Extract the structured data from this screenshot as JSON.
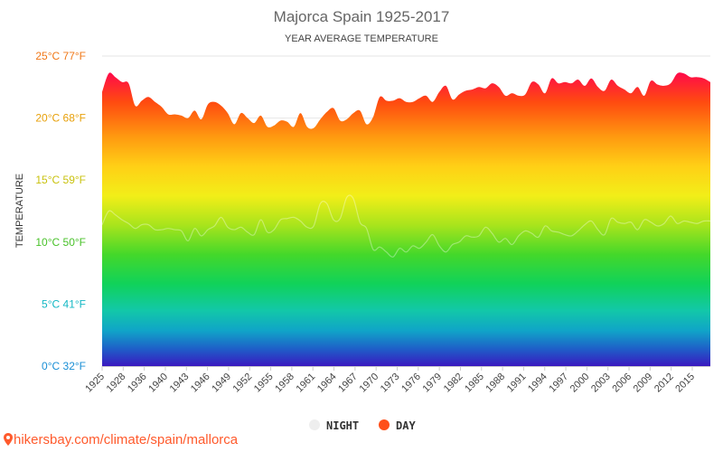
{
  "chart_data": {
    "type": "area",
    "title": "Majorca Spain 1925-2017",
    "subtitle": "YEAR AVERAGE TEMPERATURE",
    "ylabel": "TEMPERATURE",
    "ylim": [
      0,
      25
    ],
    "y_ticks": [
      {
        "value": 0,
        "label": "0°C 32°F",
        "color": "#1a8fd6"
      },
      {
        "value": 5,
        "label": "5°C 41°F",
        "color": "#14b8c4"
      },
      {
        "value": 10,
        "label": "10°C 50°F",
        "color": "#49c22a"
      },
      {
        "value": 15,
        "label": "15°C 59°F",
        "color": "#c9c20f"
      },
      {
        "value": 20,
        "label": "20°C 68°F",
        "color": "#e8a10c"
      },
      {
        "value": 25,
        "label": "25°C 77°F",
        "color": "#f07818"
      }
    ],
    "x_tick_labels": [
      "1925",
      "1928",
      "1936",
      "1940",
      "1943",
      "1946",
      "1949",
      "1952",
      "1955",
      "1958",
      "1961",
      "1964",
      "1967",
      "1970",
      "1973",
      "1976",
      "1979",
      "1982",
      "1985",
      "1988",
      "1991",
      "1994",
      "1997",
      "2000",
      "2003",
      "2006",
      "2009",
      "2012",
      "2015"
    ],
    "x": [
      1925,
      1926,
      1927,
      1928,
      1929,
      1930,
      1931,
      1932,
      1933,
      1934,
      1935,
      1936,
      1937,
      1938,
      1939,
      1940,
      1941,
      1942,
      1943,
      1944,
      1945,
      1946,
      1947,
      1948,
      1949,
      1950,
      1951,
      1952,
      1953,
      1954,
      1955,
      1956,
      1957,
      1958,
      1959,
      1960,
      1961,
      1962,
      1963,
      1964,
      1965,
      1966,
      1967,
      1968,
      1969,
      1970,
      1971,
      1972,
      1973,
      1974,
      1975,
      1976,
      1977,
      1978,
      1979,
      1980,
      1981,
      1982,
      1983,
      1984,
      1985,
      1986,
      1987,
      1988,
      1989,
      1990,
      1991,
      1992,
      1993,
      1994,
      1995,
      1996,
      1997,
      1998,
      1999,
      2000,
      2001,
      2002,
      2003,
      2004,
      2005,
      2006,
      2007,
      2008,
      2009,
      2010,
      2011,
      2012,
      2013,
      2014,
      2015,
      2016,
      2017
    ],
    "series": [
      {
        "name": "DAY",
        "color": "#ff4f1a",
        "values": [
          22.1,
          23.6,
          23.3,
          22.9,
          22.8,
          21.0,
          21.4,
          21.7,
          21.3,
          20.9,
          20.3,
          20.3,
          20.2,
          20.0,
          20.6,
          19.9,
          21.1,
          21.3,
          21.0,
          20.4,
          19.5,
          20.4,
          20.0,
          19.6,
          20.2,
          19.3,
          19.4,
          19.8,
          19.7,
          19.3,
          20.4,
          19.3,
          19.2,
          19.9,
          20.5,
          20.8,
          19.8,
          19.9,
          20.4,
          20.6,
          19.5,
          20.1,
          21.7,
          21.4,
          21.4,
          21.6,
          21.3,
          21.3,
          21.6,
          21.8,
          21.3,
          22.1,
          22.6,
          21.5,
          21.9,
          22.2,
          22.3,
          22.5,
          22.4,
          22.8,
          22.5,
          21.8,
          22.0,
          21.8,
          21.9,
          22.9,
          22.7,
          22.0,
          23.2,
          22.8,
          22.9,
          22.8,
          23.1,
          22.6,
          23.2,
          22.5,
          22.2,
          23.1,
          22.6,
          22.3,
          22.0,
          22.5,
          21.8,
          23.0,
          22.7,
          22.6,
          22.8,
          23.6,
          23.6,
          23.3,
          23.3,
          23.2,
          22.9
        ]
      },
      {
        "name": "NIGHT",
        "color": "#eeeeee",
        "values": [
          11.4,
          12.5,
          12.2,
          11.8,
          11.5,
          11.1,
          11.4,
          11.4,
          11.0,
          11.0,
          11.1,
          11.0,
          10.9,
          10.1,
          11.1,
          10.5,
          11.0,
          11.3,
          12.0,
          11.2,
          11.0,
          11.2,
          10.8,
          10.6,
          11.8,
          10.8,
          11.0,
          11.8,
          11.9,
          12.0,
          11.7,
          11.2,
          11.3,
          13.1,
          13.1,
          11.8,
          11.9,
          13.6,
          13.5,
          11.6,
          11.1,
          9.4,
          9.6,
          9.2,
          8.8,
          9.5,
          9.2,
          9.7,
          9.5,
          10.0,
          10.6,
          9.7,
          9.2,
          9.8,
          10.0,
          10.5,
          10.4,
          10.5,
          11.2,
          10.7,
          10.0,
          10.3,
          9.8,
          10.5,
          10.9,
          10.7,
          10.4,
          11.3,
          10.9,
          10.8,
          10.6,
          10.5,
          10.9,
          11.4,
          11.7,
          11.0,
          10.6,
          11.9,
          11.6,
          11.5,
          11.6,
          11.0,
          11.8,
          11.6,
          11.3,
          11.5,
          12.1,
          11.5,
          11.7,
          11.6,
          11.5,
          11.7,
          11.7
        ]
      }
    ],
    "legend": [
      {
        "name": "NIGHT",
        "color": "#eeeeee"
      },
      {
        "name": "DAY",
        "color": "#ff4f1a"
      }
    ],
    "legend_position": "bottom-center",
    "grid": true
  },
  "footer": {
    "text": "hikersbay.com/climate/spain/mallorca",
    "icon": "map-pin-icon",
    "color": "#ff5a2c"
  }
}
